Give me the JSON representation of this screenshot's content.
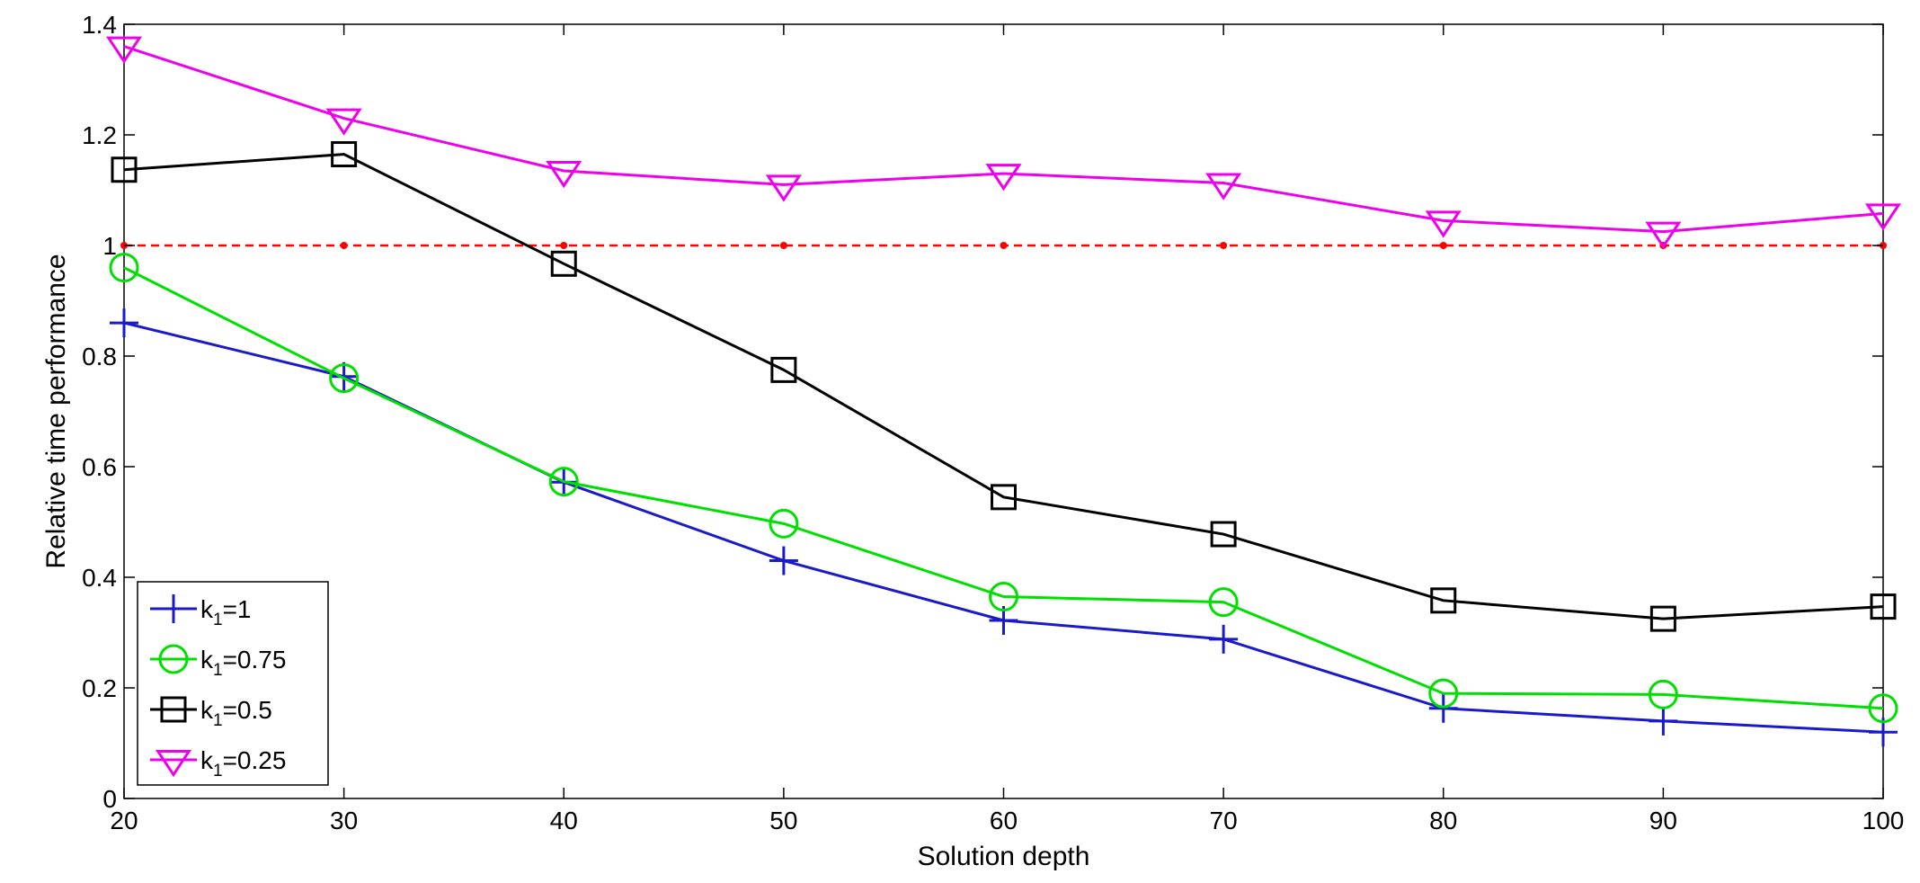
{
  "chart_data": {
    "type": "line",
    "title": "",
    "xlabel": "Solution depth",
    "ylabel": "Relative time performance",
    "x": [
      20,
      30,
      40,
      50,
      60,
      70,
      80,
      90,
      100
    ],
    "xlim": [
      20,
      100
    ],
    "ylim": [
      0,
      1.4
    ],
    "xticks": [
      "20",
      "30",
      "40",
      "50",
      "60",
      "70",
      "80",
      "90",
      "100"
    ],
    "yticks": [
      "0",
      "0.2",
      "0.4",
      "0.6",
      "0.8",
      "1",
      "1.2",
      "1.4"
    ],
    "grid": false,
    "legend_position": "bottom-left",
    "series": [
      {
        "name": "k1=1",
        "label_main": "k",
        "label_sub": "1",
        "label_rest": "=1",
        "color": "#1a1acc",
        "marker": "plus",
        "values": [
          0.86,
          0.763,
          0.572,
          0.43,
          0.322,
          0.288,
          0.163,
          0.14,
          0.12
        ]
      },
      {
        "name": "k1=0.75",
        "label_main": "k",
        "label_sub": "1",
        "label_rest": "=0.75",
        "color": "#00e000",
        "marker": "circle",
        "values": [
          0.96,
          0.76,
          0.573,
          0.497,
          0.365,
          0.355,
          0.19,
          0.188,
          0.163
        ]
      },
      {
        "name": "k1=0.5",
        "label_main": "k",
        "label_sub": "1",
        "label_rest": "=0.5",
        "color": "#000000",
        "marker": "square",
        "values": [
          1.137,
          1.165,
          0.967,
          0.775,
          0.545,
          0.478,
          0.358,
          0.325,
          0.347
        ]
      },
      {
        "name": "k1=0.25",
        "label_main": "k",
        "label_sub": "1",
        "label_rest": "=0.25",
        "color": "#ee00ee",
        "marker": "triangle-down",
        "values": [
          1.36,
          1.23,
          1.135,
          1.11,
          1.13,
          1.113,
          1.045,
          1.025,
          1.058
        ]
      }
    ],
    "reference_line": {
      "color": "#ff0000",
      "style": "dashed",
      "value": 1.0
    }
  }
}
